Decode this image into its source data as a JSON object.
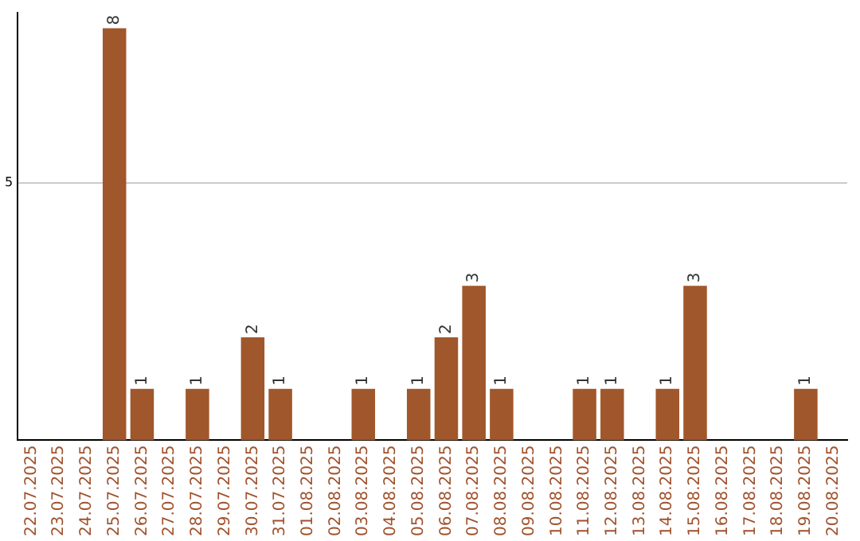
{
  "chart_data": {
    "type": "bar",
    "categories": [
      "22.07.2025",
      "23.07.2025",
      "24.07.2025",
      "25.07.2025",
      "26.07.2025",
      "27.07.2025",
      "28.07.2025",
      "29.07.2025",
      "30.07.2025",
      "31.07.2025",
      "01.08.2025",
      "02.08.2025",
      "03.08.2025",
      "04.08.2025",
      "05.08.2025",
      "06.08.2025",
      "07.08.2025",
      "08.08.2025",
      "09.08.2025",
      "10.08.2025",
      "11.08.2025",
      "12.08.2025",
      "13.08.2025",
      "14.08.2025",
      "15.08.2025",
      "16.08.2025",
      "17.08.2025",
      "18.08.2025",
      "19.08.2025",
      "20.08.2025"
    ],
    "values": [
      0,
      0,
      0,
      8,
      1,
      0,
      1,
      0,
      2,
      1,
      0,
      0,
      1,
      0,
      1,
      2,
      3,
      1,
      0,
      0,
      1,
      1,
      0,
      1,
      3,
      0,
      0,
      0,
      1,
      0
    ],
    "value_labels": [
      null,
      null,
      null,
      "8",
      "1",
      null,
      "1",
      null,
      "2",
      "1",
      null,
      null,
      "1",
      null,
      "1",
      "2",
      "3",
      "1",
      null,
      null,
      "1",
      "1",
      null,
      "1",
      "3",
      null,
      null,
      null,
      "1",
      null
    ],
    "color": "#a0572b",
    "ylim": [
      0,
      8.3
    ],
    "yticks": [
      5
    ],
    "grid": "y",
    "legend": false
  }
}
